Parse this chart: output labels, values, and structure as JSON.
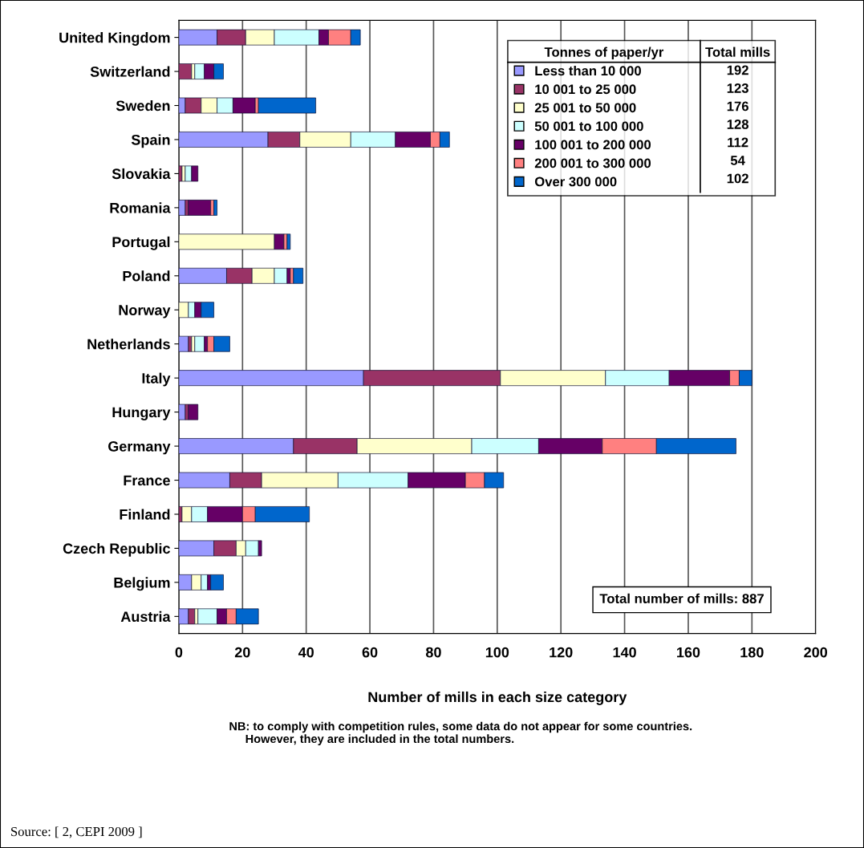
{
  "chart_data": {
    "type": "bar",
    "orientation": "horizontal",
    "stacked": true,
    "xlabel": "Number of mills in each size category",
    "legend_title": "Tonnes of paper/yr",
    "categories": [
      "United Kingdom",
      "Switzerland",
      "Sweden",
      "Spain",
      "Slovakia",
      "Romania",
      "Portugal",
      "Poland",
      "Norway",
      "Netherlands",
      "Italy",
      "Hungary",
      "Germany",
      "France",
      "Finland",
      "Czech Republic",
      "Belgium",
      "Austria"
    ],
    "series": [
      {
        "name": "Less than 10 000",
        "color": "#9999ff",
        "values": [
          12,
          0,
          2,
          28,
          0,
          2,
          0,
          15,
          0,
          3,
          58,
          2,
          36,
          16,
          0,
          11,
          4,
          3
        ]
      },
      {
        "name": "10 001 to 25 000",
        "color": "#993366",
        "values": [
          9,
          4,
          5,
          10,
          1,
          1,
          0,
          8,
          0,
          1,
          43,
          1,
          20,
          10,
          1,
          7,
          0,
          2
        ]
      },
      {
        "name": "25 001 to 50 000",
        "color": "#ffffcc",
        "values": [
          9,
          1,
          5,
          16,
          1,
          0,
          30,
          7,
          3,
          1,
          33,
          0,
          36,
          24,
          3,
          3,
          3,
          1
        ]
      },
      {
        "name": "50 001 to 100 000",
        "color": "#ccffff",
        "values": [
          14,
          3,
          5,
          14,
          2,
          0,
          0,
          4,
          2,
          3,
          20,
          0,
          21,
          22,
          5,
          4,
          2,
          6
        ]
      },
      {
        "name": "100 001 to 200 000",
        "color": "#660066",
        "values": [
          3,
          3,
          7,
          11,
          2,
          7,
          3,
          1,
          2,
          1,
          19,
          3,
          20,
          18,
          11,
          1,
          1,
          3
        ]
      },
      {
        "name": "200 001 to 300 000",
        "color": "#ff8080",
        "values": [
          7,
          0,
          1,
          3,
          0,
          1,
          1,
          1,
          0,
          2,
          3,
          0,
          17,
          6,
          4,
          0,
          0,
          3
        ]
      },
      {
        "name": "Over 300 000",
        "color": "#0066cc",
        "values": [
          3,
          3,
          18,
          3,
          0,
          1,
          1,
          3,
          4,
          5,
          4,
          0,
          25,
          6,
          17,
          0,
          4,
          7
        ]
      }
    ],
    "xlim": [
      0,
      200
    ],
    "xticks": [
      0,
      20,
      40,
      60,
      80,
      100,
      120,
      140,
      160,
      180,
      200
    ],
    "grid": "x",
    "legend": "top right",
    "annotations": [
      "Total mills",
      "192",
      "123",
      "176",
      "128",
      "112",
      "54",
      "102",
      "Total number of mills: 887",
      "NB: to comply with competition rules, some data do not appear for some countries.\n     However, they are included in the total numbers.",
      "Source: [ 2, CEPI 2009 ]"
    ]
  }
}
